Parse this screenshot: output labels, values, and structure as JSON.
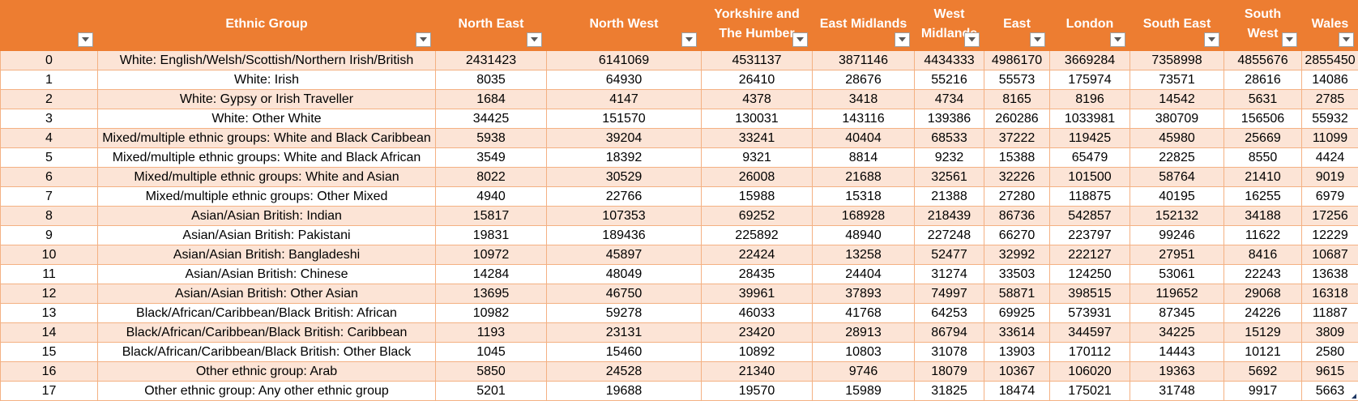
{
  "table": {
    "headers": [
      "",
      "Ethnic Group",
      "North East",
      "North West",
      "Yorkshire and The Humber",
      "East Midlands",
      "West Midlands",
      "East",
      "London",
      "South East",
      "South West",
      "Wales"
    ],
    "rows": [
      [
        "0",
        "White: English/Welsh/Scottish/Northern Irish/British",
        "2431423",
        "6141069",
        "4531137",
        "3871146",
        "4434333",
        "4986170",
        "3669284",
        "7358998",
        "4855676",
        "2855450"
      ],
      [
        "1",
        "White: Irish",
        "8035",
        "64930",
        "26410",
        "28676",
        "55216",
        "55573",
        "175974",
        "73571",
        "28616",
        "14086"
      ],
      [
        "2",
        "White: Gypsy or Irish Traveller",
        "1684",
        "4147",
        "4378",
        "3418",
        "4734",
        "8165",
        "8196",
        "14542",
        "5631",
        "2785"
      ],
      [
        "3",
        "White: Other White",
        "34425",
        "151570",
        "130031",
        "143116",
        "139386",
        "260286",
        "1033981",
        "380709",
        "156506",
        "55932"
      ],
      [
        "4",
        "Mixed/multiple ethnic groups: White and Black Caribbean",
        "5938",
        "39204",
        "33241",
        "40404",
        "68533",
        "37222",
        "119425",
        "45980",
        "25669",
        "11099"
      ],
      [
        "5",
        "Mixed/multiple ethnic groups: White and Black African",
        "3549",
        "18392",
        "9321",
        "8814",
        "9232",
        "15388",
        "65479",
        "22825",
        "8550",
        "4424"
      ],
      [
        "6",
        "Mixed/multiple ethnic groups: White and Asian",
        "8022",
        "30529",
        "26008",
        "21688",
        "32561",
        "32226",
        "101500",
        "58764",
        "21410",
        "9019"
      ],
      [
        "7",
        "Mixed/multiple ethnic groups: Other Mixed",
        "4940",
        "22766",
        "15988",
        "15318",
        "21388",
        "27280",
        "118875",
        "40195",
        "16255",
        "6979"
      ],
      [
        "8",
        "Asian/Asian British: Indian",
        "15817",
        "107353",
        "69252",
        "168928",
        "218439",
        "86736",
        "542857",
        "152132",
        "34188",
        "17256"
      ],
      [
        "9",
        "Asian/Asian British: Pakistani",
        "19831",
        "189436",
        "225892",
        "48940",
        "227248",
        "66270",
        "223797",
        "99246",
        "11622",
        "12229"
      ],
      [
        "10",
        "Asian/Asian British: Bangladeshi",
        "10972",
        "45897",
        "22424",
        "13258",
        "52477",
        "32992",
        "222127",
        "27951",
        "8416",
        "10687"
      ],
      [
        "11",
        "Asian/Asian British: Chinese",
        "14284",
        "48049",
        "28435",
        "24404",
        "31274",
        "33503",
        "124250",
        "53061",
        "22243",
        "13638"
      ],
      [
        "12",
        "Asian/Asian British: Other Asian",
        "13695",
        "46750",
        "39961",
        "37893",
        "74997",
        "58871",
        "398515",
        "119652",
        "29068",
        "16318"
      ],
      [
        "13",
        "Black/African/Caribbean/Black British: African",
        "10982",
        "59278",
        "46033",
        "41768",
        "64253",
        "69925",
        "573931",
        "87345",
        "24226",
        "11887"
      ],
      [
        "14",
        "Black/African/Caribbean/Black British: Caribbean",
        "1193",
        "23131",
        "23420",
        "28913",
        "86794",
        "33614",
        "344597",
        "34225",
        "15129",
        "3809"
      ],
      [
        "15",
        "Black/African/Caribbean/Black British: Other Black",
        "1045",
        "15460",
        "10892",
        "10803",
        "31078",
        "13903",
        "170112",
        "14443",
        "10121",
        "2580"
      ],
      [
        "16",
        "Other ethnic group: Arab",
        "5850",
        "24528",
        "21340",
        "9746",
        "18079",
        "10367",
        "106020",
        "19363",
        "5692",
        "9615"
      ],
      [
        "17",
        "Other ethnic group: Any other ethnic group",
        "5201",
        "19688",
        "19570",
        "15989",
        "31825",
        "18474",
        "175021",
        "31748",
        "9917",
        "5663"
      ]
    ]
  },
  "colors": {
    "header_bg": "#ed7d31",
    "band_bg": "#fce4d6",
    "border": "#f4b183"
  },
  "icons": {
    "filter": "filter-dropdown-icon"
  }
}
